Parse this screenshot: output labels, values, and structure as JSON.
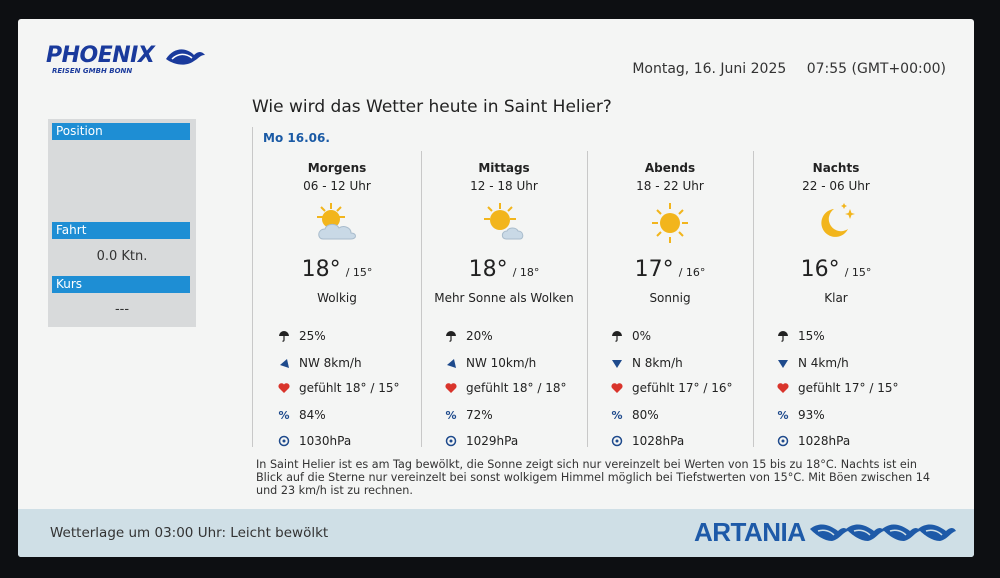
{
  "header": {
    "logo_text": "PHOENIX",
    "logo_sub": "REISEN GMBH BONN",
    "date": "Montag, 16. Juni 2025",
    "time": "07:55 (GMT+00:00)",
    "title": "Wie wird das Wetter heute in Saint Helier?"
  },
  "side": {
    "position_label": "Position",
    "position_value": "",
    "speed_label": "Fahrt",
    "speed_value": "0.0 Ktn.",
    "course_label": "Kurs",
    "course_value": "---"
  },
  "forecast": {
    "day_label": "Mo 16.06.",
    "periods": [
      {
        "name": "Morgens",
        "time": "06 - 12 Uhr",
        "icon": "sun-cloud-icon",
        "temp": "18°",
        "feels": "/ 15°",
        "desc": "Wolkig",
        "rain": "25%",
        "wind": "NW 8km/h",
        "feels_row": "gefühlt 18° / 15°",
        "humidity": "84%",
        "pressure": "1030hPa"
      },
      {
        "name": "Mittags",
        "time": "12 - 18 Uhr",
        "icon": "sun-cloud-icon",
        "temp": "18°",
        "feels": "/ 18°",
        "desc": "Mehr Sonne als Wolken",
        "rain": "20%",
        "wind": "NW 10km/h",
        "feels_row": "gefühlt 18° / 18°",
        "humidity": "72%",
        "pressure": "1029hPa"
      },
      {
        "name": "Abends",
        "time": "18 - 22 Uhr",
        "icon": "sun-icon",
        "temp": "17°",
        "feels": "/ 16°",
        "desc": "Sonnig",
        "rain": "0%",
        "wind": "N 8km/h",
        "feels_row": "gefühlt 17° / 16°",
        "humidity": "80%",
        "pressure": "1028hPa"
      },
      {
        "name": "Nachts",
        "time": "22 - 06 Uhr",
        "icon": "moon-stars-icon",
        "temp": "16°",
        "feels": "/ 15°",
        "desc": "Klar",
        "rain": "15%",
        "wind": "N 4km/h",
        "feels_row": "gefühlt 17° / 15°",
        "humidity": "93%",
        "pressure": "1028hPa"
      }
    ],
    "summary": "In Saint Helier ist es am Tag bewölkt, die Sonne zeigt sich nur vereinzelt bei Werten von 15 bis zu 18°C. Nachts ist ein Blick auf die Sterne nur vereinzelt bei sonst wolkigem Himmel möglich bei Tiefstwerten von 15°C. Mit Böen zwischen 14 und 23 km/h ist zu rechnen."
  },
  "footer": {
    "status": "Wetterlage um 03:00 Uhr: Leicht bewölkt",
    "brand": "ARTANIA"
  },
  "colors": {
    "accent_blue": "#1e8ed4",
    "brand_blue": "#1e5aa8",
    "sun": "#f2b51c",
    "heart": "#d9342b"
  }
}
